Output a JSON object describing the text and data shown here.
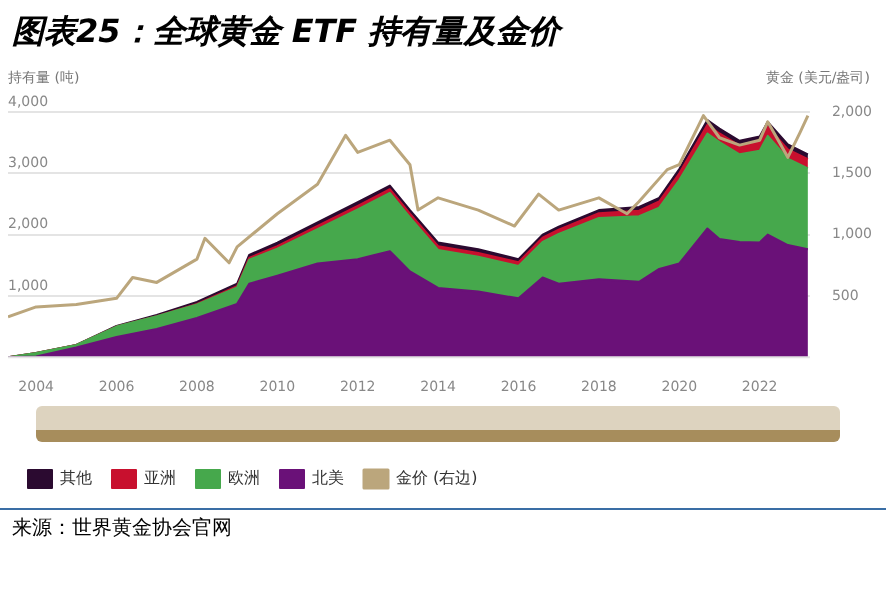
{
  "chart_data": {
    "type": "area",
    "title": "图表25：全球黄金 ETF 持有量及金价",
    "ylabel": "持有量 (吨)",
    "y2label": "黄金 (美元/盎司)",
    "annotations": [
      "来源：世界黄金协会官网"
    ],
    "stacked": true,
    "grid": "y",
    "legend": "bottom left",
    "x": [
      2003.3,
      2004,
      2005,
      2006,
      2007,
      2008,
      2009,
      2009.3,
      2010,
      2011,
      2012,
      2012.8,
      2013.3,
      2014,
      2015,
      2016,
      2016.6,
      2017,
      2018,
      2019,
      2019.5,
      2020,
      2020.7,
      2021,
      2021.5,
      2022,
      2022.2,
      2022.7,
      2023.2
    ],
    "xlim": [
      2003.3,
      2023.25
    ],
    "xticks": [
      2004,
      2006,
      2008,
      2010,
      2012,
      2014,
      2016,
      2018,
      2020,
      2022
    ],
    "ylim": [
      0,
      4000
    ],
    "yticks": [
      {
        "value": 1000,
        "label": "1,000"
      },
      {
        "value": 2000,
        "label": "2,000"
      },
      {
        "value": 3000,
        "label": "3,000"
      },
      {
        "value": 4000,
        "label": "4,000"
      }
    ],
    "y2lim": [
      0,
      2000
    ],
    "y2ticks": [
      500,
      {
        "value": 1000,
        "label": "1,000"
      },
      {
        "value": 1500,
        "label": "1,500"
      },
      {
        "value": 2000,
        "label": "2,000"
      }
    ],
    "series": [
      {
        "name": "北美",
        "color": "#6a1178",
        "values": [
          0,
          10,
          160,
          330,
          460,
          640,
          870,
          1200,
          1330,
          1530,
          1600,
          1730,
          1400,
          1130,
          1070,
          960,
          1300,
          1200,
          1270,
          1230,
          1440,
          1530,
          2100,
          1930,
          1880,
          1870,
          2000,
          1830,
          1760
        ]
      },
      {
        "name": "欧洲",
        "color": "#46a84c",
        "values": [
          0,
          60,
          40,
          170,
          210,
          220,
          270,
          390,
          440,
          560,
          810,
          950,
          880,
          620,
          570,
          530,
          580,
          810,
          1000,
          1070,
          1000,
          1360,
          1550,
          1580,
          1430,
          1500,
          1610,
          1410,
          1320
        ]
      },
      {
        "name": "亚洲",
        "color": "#c8102e",
        "values": [
          0,
          0,
          0,
          0,
          0,
          10,
          20,
          30,
          40,
          50,
          60,
          60,
          60,
          60,
          60,
          60,
          70,
          70,
          80,
          90,
          100,
          110,
          140,
          140,
          140,
          150,
          150,
          150,
          150
        ]
      },
      {
        "name": "其他",
        "color": "#2b0a30",
        "values": [
          0,
          0,
          0,
          10,
          20,
          30,
          40,
          50,
          60,
          60,
          60,
          60,
          60,
          60,
          60,
          50,
          50,
          50,
          50,
          60,
          60,
          70,
          80,
          80,
          80,
          80,
          80,
          80,
          80
        ]
      },
      {
        "name": "金价 (右边)",
        "type": "line",
        "axis": "y2",
        "color": "#bba67c",
        "x": [
          2003.3,
          2004,
          2005,
          2006,
          2006.4,
          2007,
          2008,
          2008.2,
          2008.8,
          2009,
          2010,
          2011,
          2011.7,
          2012,
          2012.8,
          2013.3,
          2013.5,
          2014,
          2015,
          2015.9,
          2016.5,
          2017,
          2018,
          2018.7,
          2019,
          2019.7,
          2020,
          2020.6,
          2021,
          2021.5,
          2022,
          2022.2,
          2022.7,
          2023,
          2023.2
        ],
        "values": [
          330,
          410,
          430,
          480,
          650,
          610,
          800,
          970,
          770,
          900,
          1170,
          1410,
          1810,
          1670,
          1770,
          1570,
          1200,
          1300,
          1200,
          1070,
          1330,
          1200,
          1300,
          1170,
          1270,
          1530,
          1570,
          1970,
          1790,
          1730,
          1770,
          1920,
          1630,
          1830,
          1970
        ]
      }
    ]
  }
}
